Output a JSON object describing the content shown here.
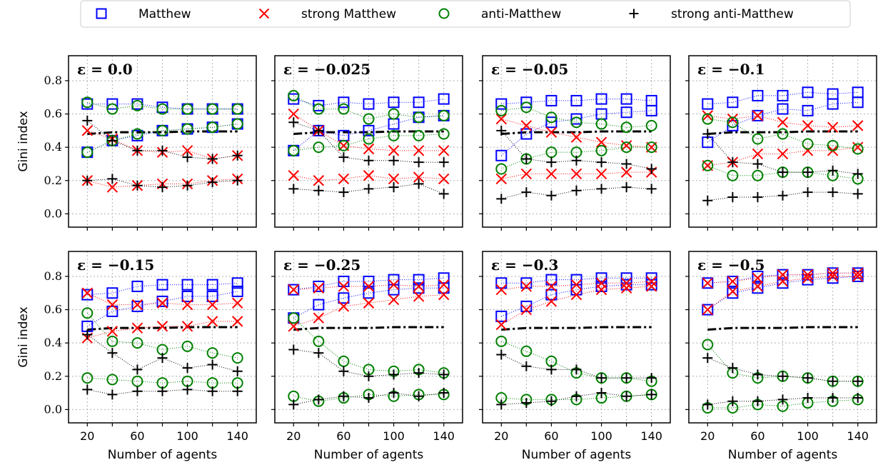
{
  "chart_data": {
    "type": "scatter",
    "legend": {
      "placement": "top-center",
      "entries": [
        {
          "name": "Matthew",
          "marker": "square",
          "color": "#0000ff"
        },
        {
          "name": "strong Matthew",
          "marker": "x",
          "color": "#ff0000"
        },
        {
          "name": "anti-Matthew",
          "marker": "circle",
          "color": "#008000"
        },
        {
          "name": "strong anti-Matthew",
          "marker": "plus",
          "color": "#000000"
        }
      ]
    },
    "xlabel": "Number of agents",
    "ylabel": "Gini index",
    "xticks": [
      20,
      60,
      100,
      140
    ],
    "yticks": [
      0.0,
      0.2,
      0.4,
      0.6,
      0.8
    ],
    "ytick_labels": [
      "0.0",
      "0.2",
      "0.4",
      "0.6",
      "0.8"
    ],
    "xlim": [
      5,
      155
    ],
    "ylim": [
      -0.08,
      0.95
    ],
    "grid": true,
    "x": [
      20,
      40,
      60,
      80,
      100,
      120,
      140
    ],
    "baseline": {
      "style": "dash-dot",
      "color": "#000000",
      "values": [
        0.48,
        0.49,
        0.49,
        0.49,
        0.495,
        0.495,
        0.495
      ]
    },
    "panels": [
      {
        "title": "ε = 0.0",
        "series": [
          {
            "marker": "square",
            "color": "#0000ff",
            "values": [
              0.66,
              0.66,
              0.66,
              0.64,
              0.63,
              0.63,
              0.63
            ]
          },
          {
            "marker": "square",
            "color": "#0000ff",
            "values": [
              0.37,
              0.44,
              0.47,
              0.5,
              0.51,
              0.52,
              0.54
            ]
          },
          {
            "marker": "x",
            "color": "#ff0000",
            "values": [
              0.5,
              0.45,
              0.38,
              0.37,
              0.38,
              0.33,
              0.35
            ]
          },
          {
            "marker": "x",
            "color": "#ff0000",
            "values": [
              0.2,
              0.16,
              0.17,
              0.18,
              0.18,
              0.2,
              0.21
            ]
          },
          {
            "marker": "circle",
            "color": "#008000",
            "values": [
              0.67,
              0.63,
              0.65,
              0.63,
              0.63,
              0.63,
              0.63
            ]
          },
          {
            "marker": "circle",
            "color": "#008000",
            "values": [
              0.37,
              0.44,
              0.48,
              0.5,
              0.51,
              0.52,
              0.54
            ]
          },
          {
            "marker": "plus",
            "color": "#000000",
            "values": [
              0.56,
              0.44,
              0.38,
              0.38,
              0.34,
              0.33,
              0.35
            ]
          },
          {
            "marker": "plus",
            "color": "#000000",
            "values": [
              0.2,
              0.21,
              0.17,
              0.16,
              0.17,
              0.19,
              0.2
            ]
          }
        ]
      },
      {
        "title": "ε = −0.025",
        "series": [
          {
            "marker": "square",
            "color": "#0000ff",
            "values": [
              0.69,
              0.65,
              0.67,
              0.66,
              0.67,
              0.67,
              0.69
            ]
          },
          {
            "marker": "square",
            "color": "#0000ff",
            "values": [
              0.38,
              0.5,
              0.47,
              0.5,
              0.54,
              0.58,
              0.59
            ]
          },
          {
            "marker": "x",
            "color": "#ff0000",
            "values": [
              0.6,
              0.5,
              0.41,
              0.39,
              0.38,
              0.38,
              0.38
            ]
          },
          {
            "marker": "x",
            "color": "#ff0000",
            "values": [
              0.23,
              0.2,
              0.21,
              0.23,
              0.21,
              0.22,
              0.21
            ]
          },
          {
            "marker": "circle",
            "color": "#008000",
            "values": [
              0.71,
              0.63,
              0.63,
              0.57,
              0.6,
              0.58,
              0.59
            ]
          },
          {
            "marker": "circle",
            "color": "#008000",
            "values": [
              0.38,
              0.4,
              0.41,
              0.45,
              0.47,
              0.47,
              0.48
            ]
          },
          {
            "marker": "plus",
            "color": "#000000",
            "values": [
              0.55,
              0.5,
              0.34,
              0.32,
              0.32,
              0.31,
              0.31
            ]
          },
          {
            "marker": "plus",
            "color": "#000000",
            "values": [
              0.15,
              0.14,
              0.13,
              0.15,
              0.16,
              0.18,
              0.12
            ]
          }
        ]
      },
      {
        "title": "ε = −0.05",
        "series": [
          {
            "marker": "square",
            "color": "#0000ff",
            "values": [
              0.66,
              0.67,
              0.68,
              0.68,
              0.69,
              0.69,
              0.68
            ]
          },
          {
            "marker": "square",
            "color": "#0000ff",
            "values": [
              0.35,
              0.48,
              0.55,
              0.57,
              0.6,
              0.61,
              0.62
            ]
          },
          {
            "marker": "x",
            "color": "#ff0000",
            "values": [
              0.57,
              0.53,
              0.49,
              0.46,
              0.43,
              0.41,
              0.4
            ]
          },
          {
            "marker": "x",
            "color": "#ff0000",
            "values": [
              0.21,
              0.24,
              0.24,
              0.24,
              0.24,
              0.25,
              0.25
            ]
          },
          {
            "marker": "circle",
            "color": "#008000",
            "values": [
              0.62,
              0.64,
              0.58,
              0.55,
              0.54,
              0.52,
              0.53
            ]
          },
          {
            "marker": "circle",
            "color": "#008000",
            "values": [
              0.27,
              0.33,
              0.37,
              0.37,
              0.38,
              0.4,
              0.4
            ]
          },
          {
            "marker": "plus",
            "color": "#000000",
            "values": [
              0.5,
              0.33,
              0.31,
              0.32,
              0.31,
              0.3,
              0.27
            ]
          },
          {
            "marker": "plus",
            "color": "#000000",
            "values": [
              0.09,
              0.13,
              0.11,
              0.14,
              0.15,
              0.16,
              0.15
            ]
          }
        ]
      },
      {
        "title": "ε = −0.1",
        "series": [
          {
            "marker": "square",
            "color": "#0000ff",
            "values": [
              0.66,
              0.67,
              0.71,
              0.71,
              0.73,
              0.72,
              0.73
            ]
          },
          {
            "marker": "square",
            "color": "#0000ff",
            "values": [
              0.43,
              0.53,
              0.59,
              0.63,
              0.62,
              0.66,
              0.67
            ]
          },
          {
            "marker": "x",
            "color": "#ff0000",
            "values": [
              0.59,
              0.57,
              0.59,
              0.55,
              0.53,
              0.52,
              0.53
            ]
          },
          {
            "marker": "x",
            "color": "#ff0000",
            "values": [
              0.29,
              0.31,
              0.36,
              0.36,
              0.38,
              0.38,
              0.4
            ]
          },
          {
            "marker": "circle",
            "color": "#008000",
            "values": [
              0.57,
              0.55,
              0.45,
              0.48,
              0.42,
              0.41,
              0.39
            ]
          },
          {
            "marker": "circle",
            "color": "#008000",
            "values": [
              0.29,
              0.23,
              0.23,
              0.25,
              0.25,
              0.23,
              0.21
            ]
          },
          {
            "marker": "plus",
            "color": "#000000",
            "values": [
              0.48,
              0.31,
              0.3,
              0.25,
              0.25,
              0.26,
              0.24
            ]
          },
          {
            "marker": "plus",
            "color": "#000000",
            "values": [
              0.08,
              0.1,
              0.1,
              0.11,
              0.13,
              0.13,
              0.12
            ]
          }
        ]
      },
      {
        "title": "ε = −0.15",
        "series": [
          {
            "marker": "square",
            "color": "#0000ff",
            "values": [
              0.69,
              0.7,
              0.74,
              0.75,
              0.75,
              0.75,
              0.76
            ]
          },
          {
            "marker": "square",
            "color": "#0000ff",
            "values": [
              0.5,
              0.59,
              0.62,
              0.65,
              0.68,
              0.68,
              0.71
            ]
          },
          {
            "marker": "x",
            "color": "#ff0000",
            "values": [
              0.7,
              0.63,
              0.63,
              0.64,
              0.63,
              0.63,
              0.64
            ]
          },
          {
            "marker": "x",
            "color": "#ff0000",
            "values": [
              0.43,
              0.47,
              0.49,
              0.5,
              0.5,
              0.53,
              0.53
            ]
          },
          {
            "marker": "circle",
            "color": "#008000",
            "values": [
              0.58,
              0.41,
              0.4,
              0.36,
              0.38,
              0.34,
              0.31
            ]
          },
          {
            "marker": "circle",
            "color": "#008000",
            "values": [
              0.19,
              0.18,
              0.17,
              0.16,
              0.17,
              0.16,
              0.16
            ]
          },
          {
            "marker": "plus",
            "color": "#000000",
            "values": [
              0.45,
              0.34,
              0.24,
              0.31,
              0.25,
              0.27,
              0.23
            ]
          },
          {
            "marker": "plus",
            "color": "#000000",
            "values": [
              0.12,
              0.09,
              0.11,
              0.11,
              0.12,
              0.11,
              0.11
            ]
          }
        ]
      },
      {
        "title": "ε = −0.25",
        "series": [
          {
            "marker": "square",
            "color": "#0000ff",
            "values": [
              0.72,
              0.74,
              0.77,
              0.77,
              0.78,
              0.78,
              0.79
            ]
          },
          {
            "marker": "square",
            "color": "#0000ff",
            "values": [
              0.55,
              0.63,
              0.67,
              0.7,
              0.72,
              0.73,
              0.73
            ]
          },
          {
            "marker": "x",
            "color": "#ff0000",
            "values": [
              0.72,
              0.73,
              0.74,
              0.74,
              0.75,
              0.74,
              0.75
            ]
          },
          {
            "marker": "x",
            "color": "#ff0000",
            "values": [
              0.5,
              0.55,
              0.62,
              0.64,
              0.66,
              0.68,
              0.69
            ]
          },
          {
            "marker": "circle",
            "color": "#008000",
            "values": [
              0.55,
              0.41,
              0.29,
              0.24,
              0.23,
              0.24,
              0.22
            ]
          },
          {
            "marker": "circle",
            "color": "#008000",
            "values": [
              0.08,
              0.05,
              0.07,
              0.09,
              0.08,
              0.09,
              0.09
            ]
          },
          {
            "marker": "plus",
            "color": "#000000",
            "values": [
              0.36,
              0.34,
              0.23,
              0.2,
              0.21,
              0.22,
              0.21
            ]
          },
          {
            "marker": "plus",
            "color": "#000000",
            "values": [
              0.03,
              0.06,
              0.08,
              0.07,
              0.1,
              0.08,
              0.1
            ]
          }
        ]
      },
      {
        "title": "ε = −0.3",
        "series": [
          {
            "marker": "square",
            "color": "#0000ff",
            "values": [
              0.76,
              0.76,
              0.78,
              0.78,
              0.79,
              0.79,
              0.79
            ]
          },
          {
            "marker": "square",
            "color": "#0000ff",
            "values": [
              0.56,
              0.62,
              0.69,
              0.72,
              0.74,
              0.75,
              0.75
            ]
          },
          {
            "marker": "x",
            "color": "#ff0000",
            "values": [
              0.72,
              0.74,
              0.74,
              0.75,
              0.76,
              0.76,
              0.77
            ]
          },
          {
            "marker": "x",
            "color": "#ff0000",
            "values": [
              0.51,
              0.6,
              0.65,
              0.69,
              0.72,
              0.73,
              0.74
            ]
          },
          {
            "marker": "circle",
            "color": "#008000",
            "values": [
              0.41,
              0.35,
              0.29,
              0.22,
              0.19,
              0.19,
              0.17
            ]
          },
          {
            "marker": "circle",
            "color": "#008000",
            "values": [
              0.07,
              0.06,
              0.06,
              0.06,
              0.07,
              0.08,
              0.09
            ]
          },
          {
            "marker": "plus",
            "color": "#000000",
            "values": [
              0.33,
              0.26,
              0.24,
              0.24,
              0.19,
              0.19,
              0.19
            ]
          },
          {
            "marker": "plus",
            "color": "#000000",
            "values": [
              0.03,
              0.04,
              0.05,
              0.08,
              0.1,
              0.08,
              0.09
            ]
          }
        ]
      },
      {
        "title": "ε = −0.5",
        "series": [
          {
            "marker": "square",
            "color": "#0000ff",
            "values": [
              0.76,
              0.77,
              0.8,
              0.81,
              0.81,
              0.82,
              0.82
            ]
          },
          {
            "marker": "square",
            "color": "#0000ff",
            "values": [
              0.6,
              0.7,
              0.73,
              0.76,
              0.78,
              0.79,
              0.8
            ]
          },
          {
            "marker": "x",
            "color": "#ff0000",
            "values": [
              0.76,
              0.77,
              0.79,
              0.81,
              0.81,
              0.82,
              0.82
            ]
          },
          {
            "marker": "x",
            "color": "#ff0000",
            "values": [
              0.6,
              0.71,
              0.74,
              0.77,
              0.79,
              0.8,
              0.8
            ]
          },
          {
            "marker": "circle",
            "color": "#008000",
            "values": [
              0.39,
              0.22,
              0.19,
              0.2,
              0.19,
              0.17,
              0.17
            ]
          },
          {
            "marker": "circle",
            "color": "#008000",
            "values": [
              0.01,
              0.01,
              0.03,
              0.02,
              0.04,
              0.05,
              0.06
            ]
          },
          {
            "marker": "plus",
            "color": "#000000",
            "values": [
              0.31,
              0.25,
              0.21,
              0.2,
              0.19,
              0.17,
              0.17
            ]
          },
          {
            "marker": "plus",
            "color": "#000000",
            "values": [
              0.03,
              0.05,
              0.05,
              0.06,
              0.07,
              0.07,
              0.07
            ]
          }
        ]
      }
    ]
  }
}
